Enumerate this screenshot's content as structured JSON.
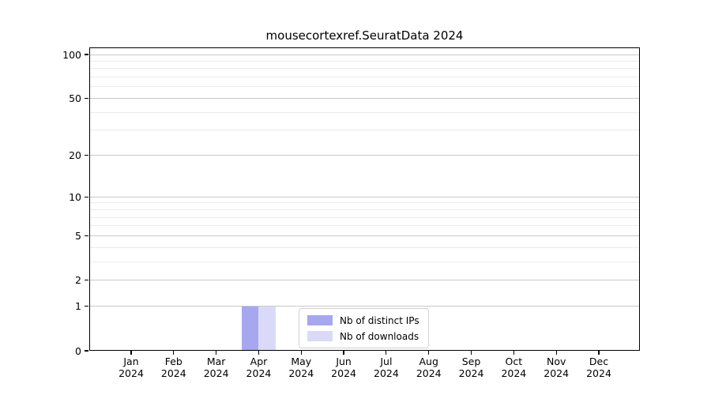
{
  "figure": {
    "background": "#ffffff"
  },
  "chart_data": {
    "type": "bar",
    "title": "mousecortexref.SeuratData 2024",
    "categories": [
      "Jan",
      "Feb",
      "Mar",
      "Apr",
      "May",
      "Jun",
      "Jul",
      "Aug",
      "Sep",
      "Oct",
      "Nov",
      "Dec"
    ],
    "category_year": "2024",
    "series": [
      {
        "name": "Nb of distinct IPs",
        "color": "#a7a7f0",
        "values": [
          0,
          0,
          0,
          1,
          0,
          0,
          0,
          0,
          0,
          0,
          0,
          0
        ]
      },
      {
        "name": "Nb of downloads",
        "color": "#dadaf8",
        "values": [
          0,
          0,
          0,
          1,
          0,
          0,
          0,
          0,
          0,
          0,
          0,
          0
        ]
      }
    ],
    "y_ticks": [
      0,
      1,
      2,
      5,
      10,
      20,
      50,
      100
    ],
    "y_minor_ticks": [
      3,
      4,
      6,
      7,
      8,
      9,
      30,
      40,
      60,
      70,
      80,
      90
    ],
    "y_scale": "log1p",
    "ylim": [
      0,
      113
    ],
    "xlabel": "",
    "ylabel": "",
    "grid": "horizontal",
    "legend": {
      "position": "lower-center-inside"
    },
    "colors": {
      "axis": "#000000",
      "text": "#000000",
      "major_grid": "#c9c9c9",
      "minor_grid": "#ebebeb",
      "legend_border": "#d2d2d2"
    }
  }
}
